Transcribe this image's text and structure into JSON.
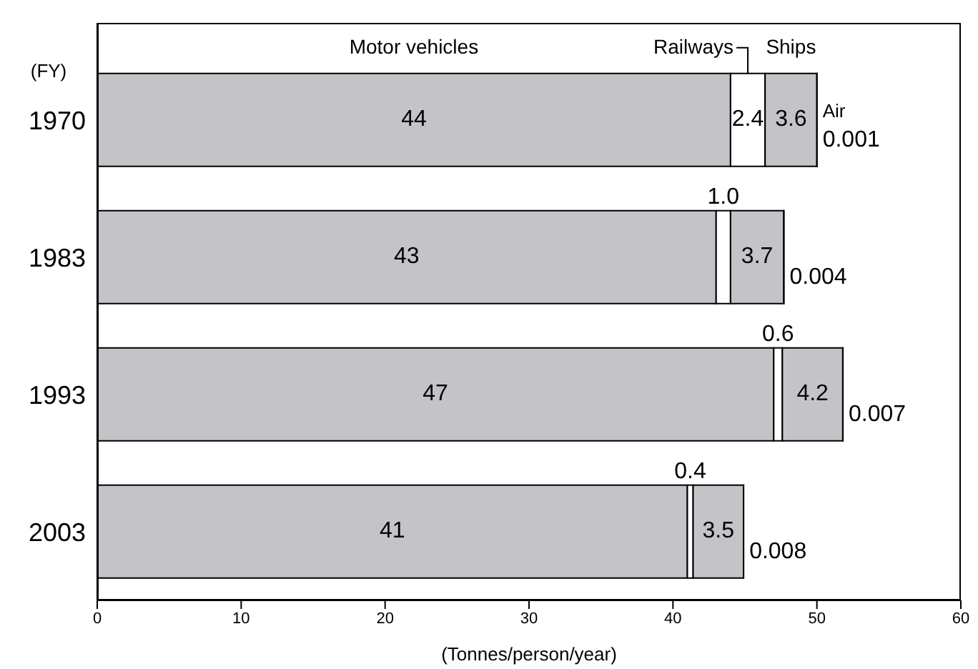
{
  "chart_data": {
    "type": "bar",
    "orientation": "horizontal",
    "stacked": true,
    "ylabel": "(FY)",
    "xlabel": "(Tonnes/person/year)",
    "categories": [
      "1970",
      "1983",
      "1993",
      "2003"
    ],
    "series": [
      {
        "name": "Motor vehicles",
        "color": "#c4c4c8",
        "values": [
          44,
          43,
          47,
          41
        ],
        "value_labels": [
          "44",
          "43",
          "47",
          "41"
        ]
      },
      {
        "name": "Railways",
        "color": "#ffffff",
        "values": [
          2.4,
          1.0,
          0.6,
          0.4
        ],
        "value_labels": [
          "2.4",
          "1.0",
          "0.6",
          "0.4"
        ]
      },
      {
        "name": "Ships",
        "color": "#c4c4c8",
        "values": [
          3.6,
          3.7,
          4.2,
          3.5
        ],
        "value_labels": [
          "3.6",
          "3.7",
          "4.2",
          "3.5"
        ]
      },
      {
        "name": "Air",
        "color": "#c4c4c8",
        "values": [
          0.001,
          0.004,
          0.007,
          0.008
        ],
        "value_labels": [
          "0.001",
          "0.004",
          "0.007",
          "0.008"
        ]
      }
    ],
    "xlim": [
      0,
      60
    ],
    "xticks": [
      0,
      10,
      20,
      30,
      40,
      50,
      60
    ],
    "grid": false,
    "legend": false
  }
}
